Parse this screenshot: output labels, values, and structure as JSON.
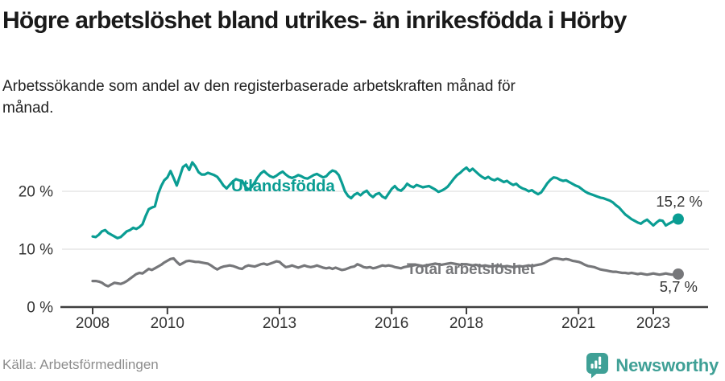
{
  "header": {
    "title": "Högre arbetslöshet bland utrikes- än inrikesfödda i Hörby",
    "subtitle": "Arbetssökande som andel av den registerbaserade arbetskraften månad för månad."
  },
  "footer": {
    "source": "Källa: Arbetsförmedlingen",
    "brand_name": "Newsworthy",
    "brand_icon": "newsworthy-speech-bubble-bar-chart-icon",
    "brand_color": "#3fa096"
  },
  "colors": {
    "foreign_born_line": "#0a9d93",
    "total_line": "#76777a",
    "grid": "#e5e5e5",
    "axis": "#3f3f3f",
    "axis_text": "#333333",
    "end_label_text": "#333333"
  },
  "chart_data": {
    "type": "line",
    "unit": "%",
    "x_axis": {
      "tick_years": [
        2008,
        2010,
        2013,
        2016,
        2018,
        2021,
        2023
      ]
    },
    "y_axis": {
      "ticks": [
        0,
        10,
        20
      ],
      "tick_labels": [
        "0 %",
        "10 %",
        "20 %"
      ],
      "range": [
        0,
        26
      ]
    },
    "grid": "horizontal",
    "legend": "inline-labels",
    "series": [
      {
        "name": "Utlandsfödda",
        "color": "#0a9d93",
        "start_year": 2008,
        "interval_months": 1,
        "end_value": 15.2,
        "end_label": "15,2 %",
        "values": [
          12.2,
          12.1,
          12.5,
          13.1,
          13.3,
          12.8,
          12.5,
          12.2,
          11.9,
          12.1,
          12.6,
          13.1,
          13.3,
          13.7,
          13.5,
          13.8,
          14.3,
          15.7,
          16.9,
          17.2,
          17.4,
          19.5,
          20.9,
          21.9,
          22.4,
          23.5,
          22.3,
          21.0,
          22.6,
          24.2,
          24.6,
          23.7,
          25.0,
          24.3,
          23.3,
          22.9,
          22.9,
          23.2,
          23.0,
          22.8,
          22.5,
          21.8,
          21.0,
          20.5,
          21.1,
          21.7,
          22.1,
          21.9,
          21.8,
          20.8,
          20.3,
          20.7,
          21.5,
          22.4,
          23.1,
          23.5,
          23.0,
          22.6,
          22.4,
          22.7,
          23.1,
          23.4,
          22.9,
          22.5,
          22.3,
          22.5,
          22.8,
          22.6,
          22.3,
          22.2,
          22.5,
          22.8,
          23.0,
          22.7,
          22.4,
          22.6,
          23.2,
          23.6,
          23.4,
          22.8,
          21.5,
          20.0,
          19.2,
          18.8,
          19.4,
          19.7,
          19.3,
          19.8,
          20.1,
          19.4,
          19.0,
          19.5,
          19.7,
          19.1,
          18.8,
          19.6,
          20.4,
          20.9,
          20.3,
          20.1,
          20.6,
          21.3,
          20.9,
          20.7,
          21.1,
          20.9,
          20.7,
          20.8,
          20.9,
          20.6,
          20.3,
          19.9,
          20.1,
          20.4,
          20.8,
          21.5,
          22.2,
          22.8,
          23.2,
          23.7,
          24.1,
          23.5,
          23.9,
          23.4,
          22.9,
          22.5,
          22.2,
          22.5,
          22.1,
          21.9,
          22.2,
          21.9,
          21.6,
          21.8,
          21.4,
          21.1,
          21.3,
          20.8,
          20.5,
          20.3,
          20.0,
          20.2,
          19.8,
          19.5,
          19.8,
          20.6,
          21.4,
          22.0,
          22.4,
          22.3,
          22.0,
          21.8,
          21.9,
          21.6,
          21.3,
          21.0,
          20.8,
          20.4,
          20.0,
          19.7,
          19.5,
          19.3,
          19.1,
          18.9,
          18.8,
          18.6,
          18.4,
          18.1,
          17.6,
          17.2,
          16.6,
          16.0,
          15.6,
          15.2,
          14.9,
          14.6,
          14.4,
          14.8,
          15.1,
          14.6,
          14.1,
          14.6,
          15.0,
          14.9,
          14.1,
          14.4,
          14.7,
          15.0,
          15.2
        ]
      },
      {
        "name": "Total arbetslöshet",
        "color": "#76777a",
        "start_year": 2008,
        "interval_months": 1,
        "end_value": 5.7,
        "end_label": "5,7 %",
        "values": [
          4.5,
          4.5,
          4.4,
          4.2,
          3.8,
          3.6,
          3.9,
          4.2,
          4.1,
          4.0,
          4.2,
          4.5,
          4.9,
          5.3,
          5.7,
          5.9,
          5.8,
          6.2,
          6.6,
          6.4,
          6.7,
          7.0,
          7.3,
          7.7,
          8.0,
          8.3,
          8.4,
          7.8,
          7.3,
          7.6,
          7.9,
          8.0,
          7.9,
          7.8,
          7.8,
          7.7,
          7.6,
          7.5,
          7.2,
          6.8,
          6.5,
          6.8,
          7.0,
          7.1,
          7.2,
          7.1,
          6.9,
          6.7,
          6.6,
          7.0,
          7.2,
          7.1,
          7.0,
          7.2,
          7.4,
          7.5,
          7.3,
          7.5,
          7.7,
          7.9,
          7.8,
          7.3,
          6.9,
          7.0,
          7.2,
          7.0,
          6.8,
          7.0,
          7.2,
          7.0,
          6.9,
          7.0,
          7.2,
          7.0,
          6.8,
          6.7,
          6.8,
          6.6,
          6.8,
          6.6,
          6.4,
          6.5,
          6.7,
          6.9,
          7.0,
          7.4,
          7.2,
          6.9,
          6.8,
          6.9,
          6.7,
          6.8,
          7.0,
          7.2,
          7.1,
          7.2,
          7.1,
          6.9,
          6.8,
          6.7,
          6.9,
          7.0,
          7.1,
          7.2,
          7.3,
          7.2,
          7.1,
          7.2,
          7.3,
          7.4,
          7.5,
          7.4,
          7.3,
          7.4,
          7.5,
          7.6,
          7.5,
          7.4,
          7.3,
          7.4,
          7.4,
          7.3,
          7.2,
          7.3,
          7.2,
          7.1,
          7.2,
          7.1,
          7.0,
          7.1,
          7.2,
          7.1,
          7.0,
          7.1,
          7.0,
          6.9,
          7.0,
          7.1,
          7.0,
          7.1,
          7.2,
          7.1,
          7.2,
          7.3,
          7.4,
          7.6,
          7.9,
          8.2,
          8.4,
          8.4,
          8.3,
          8.2,
          8.3,
          8.2,
          8.0,
          7.9,
          7.8,
          7.6,
          7.3,
          7.1,
          7.0,
          6.9,
          6.7,
          6.5,
          6.4,
          6.3,
          6.2,
          6.1,
          6.1,
          6.0,
          5.9,
          5.9,
          5.8,
          5.9,
          5.8,
          5.7,
          5.8,
          5.7,
          5.6,
          5.7,
          5.8,
          5.7,
          5.6,
          5.7,
          5.8,
          5.7,
          5.6,
          5.7,
          5.7
        ]
      }
    ]
  }
}
